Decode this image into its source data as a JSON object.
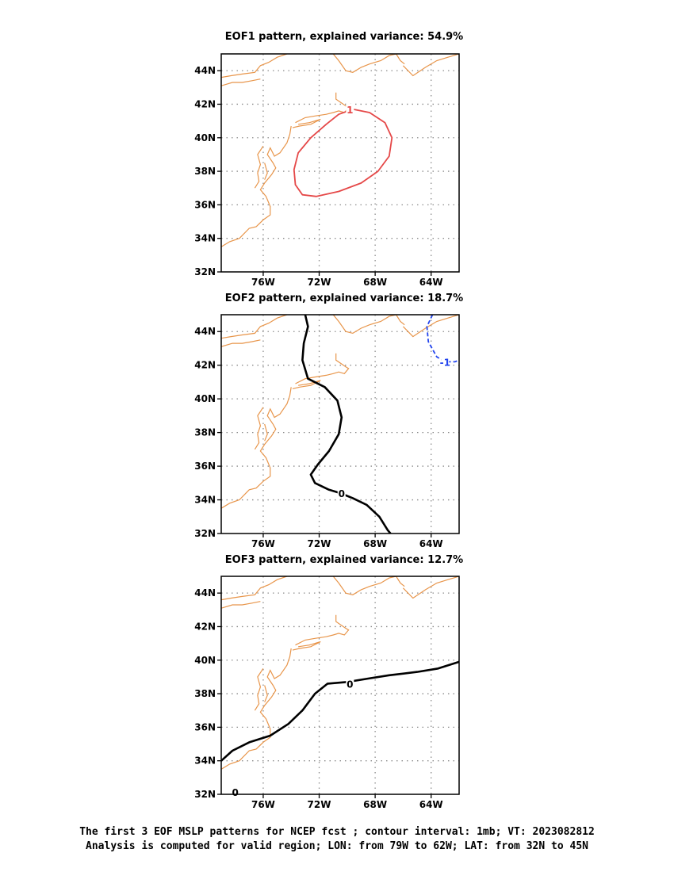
{
  "colors": {
    "coast": "#e8954a",
    "positive_contour": "#e54848",
    "negative_contour": "#2244ee",
    "zero_contour": "#000000",
    "grid": "#8c8c8c",
    "frame": "#000000"
  },
  "caption": {
    "line1": "The first 3 EOF MSLP patterns for NCEP fcst ; contour interval: 1mb; VT: 2023082812",
    "line2": "Analysis is computed for valid region; LON: from 79W to 62W; LAT: from 32N to 45N"
  },
  "chart_data": [
    {
      "type": "contour-map",
      "title": "EOF1 pattern, explained variance: 54.9%",
      "lon_range": [
        -79,
        -62
      ],
      "lat_range": [
        32,
        45
      ],
      "lon_ticks": [
        {
          "v": -76,
          "label": "76W"
        },
        {
          "v": -72,
          "label": "72W"
        },
        {
          "v": -68,
          "label": "68W"
        },
        {
          "v": -64,
          "label": "64W"
        }
      ],
      "lat_ticks": [
        {
          "v": 32,
          "label": "32N"
        },
        {
          "v": 34,
          "label": "34N"
        },
        {
          "v": 36,
          "label": "36N"
        },
        {
          "v": 38,
          "label": "38N"
        },
        {
          "v": 40,
          "label": "40N"
        },
        {
          "v": 42,
          "label": "42N"
        },
        {
          "v": 44,
          "label": "44N"
        }
      ],
      "grid": true,
      "contours": [
        {
          "level": "1",
          "style": "solid",
          "color": "positive_contour",
          "closed": true,
          "label_at": [
            -69.8,
            41.7
          ],
          "points": [
            [
              -69.6,
              41.7
            ],
            [
              -68.4,
              41.5
            ],
            [
              -67.3,
              40.9
            ],
            [
              -66.8,
              40.0
            ],
            [
              -67.0,
              38.9
            ],
            [
              -67.8,
              38.0
            ],
            [
              -69.0,
              37.3
            ],
            [
              -70.6,
              36.8
            ],
            [
              -72.2,
              36.5
            ],
            [
              -73.2,
              36.6
            ],
            [
              -73.7,
              37.2
            ],
            [
              -73.8,
              38.1
            ],
            [
              -73.5,
              39.1
            ],
            [
              -72.6,
              40.0
            ],
            [
              -71.5,
              40.8
            ],
            [
              -70.6,
              41.4
            ],
            [
              -69.6,
              41.7
            ]
          ]
        }
      ]
    },
    {
      "type": "contour-map",
      "title": "EOF2 pattern, explained variance: 18.7%",
      "lon_range": [
        -79,
        -62
      ],
      "lat_range": [
        32,
        45
      ],
      "lon_ticks": [
        {
          "v": -76,
          "label": "76W"
        },
        {
          "v": -72,
          "label": "72W"
        },
        {
          "v": -68,
          "label": "68W"
        },
        {
          "v": -64,
          "label": "64W"
        }
      ],
      "lat_ticks": [
        {
          "v": 32,
          "label": "32N"
        },
        {
          "v": 34,
          "label": "34N"
        },
        {
          "v": 36,
          "label": "36N"
        },
        {
          "v": 38,
          "label": "38N"
        },
        {
          "v": 40,
          "label": "40N"
        },
        {
          "v": 42,
          "label": "42N"
        },
        {
          "v": 44,
          "label": "44N"
        }
      ],
      "grid": true,
      "contours": [
        {
          "level": "0",
          "style": "solid-thick",
          "color": "zero_contour",
          "closed": false,
          "label_at": [
            -70.4,
            34.4
          ],
          "points": [
            [
              -73.0,
              45.0
            ],
            [
              -72.8,
              44.3
            ],
            [
              -73.1,
              43.3
            ],
            [
              -73.2,
              42.3
            ],
            [
              -72.8,
              41.2
            ],
            [
              -71.6,
              40.7
            ],
            [
              -70.7,
              39.9
            ],
            [
              -70.4,
              38.9
            ],
            [
              -70.6,
              37.9
            ],
            [
              -71.3,
              36.9
            ],
            [
              -72.1,
              36.1
            ],
            [
              -72.6,
              35.5
            ],
            [
              -72.3,
              35.0
            ],
            [
              -71.3,
              34.6
            ],
            [
              -70.5,
              34.4
            ],
            [
              -69.6,
              34.1
            ],
            [
              -68.6,
              33.7
            ],
            [
              -67.7,
              33.0
            ],
            [
              -67.1,
              32.2
            ],
            [
              -66.9,
              32.0
            ]
          ]
        },
        {
          "level": "-1",
          "style": "dashed",
          "color": "negative_contour",
          "closed": false,
          "label_at": [
            -63.0,
            42.2
          ],
          "points": [
            [
              -63.9,
              45.0
            ],
            [
              -64.3,
              44.3
            ],
            [
              -64.2,
              43.4
            ],
            [
              -63.6,
              42.5
            ],
            [
              -63.0,
              42.2
            ],
            [
              -62.3,
              42.2
            ],
            [
              -62.0,
              42.3
            ]
          ]
        }
      ]
    },
    {
      "type": "contour-map",
      "title": "EOF3 pattern, explained variance: 12.7%",
      "lon_range": [
        -79,
        -62
      ],
      "lat_range": [
        32,
        45
      ],
      "lon_ticks": [
        {
          "v": -76,
          "label": "76W"
        },
        {
          "v": -72,
          "label": "72W"
        },
        {
          "v": -68,
          "label": "68W"
        },
        {
          "v": -64,
          "label": "64W"
        }
      ],
      "lat_ticks": [
        {
          "v": 32,
          "label": "32N"
        },
        {
          "v": 34,
          "label": "34N"
        },
        {
          "v": 36,
          "label": "36N"
        },
        {
          "v": 38,
          "label": "38N"
        },
        {
          "v": 40,
          "label": "40N"
        },
        {
          "v": 42,
          "label": "42N"
        },
        {
          "v": 44,
          "label": "44N"
        }
      ],
      "grid": true,
      "contours": [
        {
          "level": "0",
          "style": "solid-thick",
          "color": "zero_contour",
          "closed": false,
          "label_at": [
            -69.8,
            38.6
          ],
          "points": [
            [
              -79.0,
              34.0
            ],
            [
              -78.2,
              34.6
            ],
            [
              -77.0,
              35.1
            ],
            [
              -75.5,
              35.5
            ],
            [
              -74.2,
              36.2
            ],
            [
              -73.2,
              37.0
            ],
            [
              -72.3,
              38.0
            ],
            [
              -71.4,
              38.6
            ],
            [
              -70.0,
              38.7
            ],
            [
              -68.5,
              38.9
            ],
            [
              -67.0,
              39.1
            ],
            [
              -65.0,
              39.3
            ],
            [
              -63.5,
              39.5
            ],
            [
              -62.0,
              39.9
            ]
          ]
        },
        {
          "level": "0",
          "style": "solid-thick",
          "color": "zero_contour",
          "closed": false,
          "label_at": [
            -78.0,
            32.15
          ],
          "points": []
        }
      ]
    }
  ]
}
